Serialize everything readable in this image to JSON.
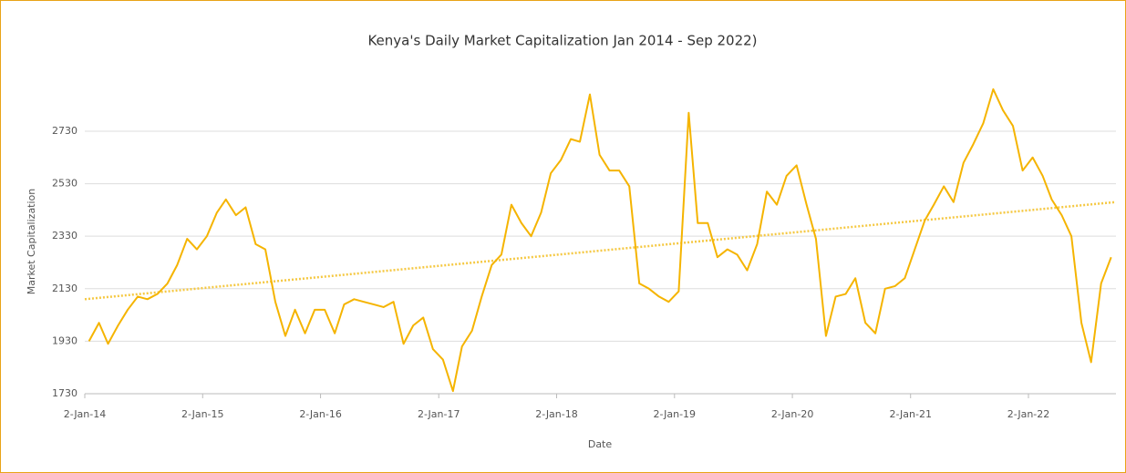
{
  "chart_data": {
    "type": "line",
    "title": "Kenya's Daily Market Capitalization Jan 2014  - Sep 2022)",
    "xlabel": "Date",
    "ylabel": "Market Capitalization",
    "x": [
      "2014-01-15",
      "2014-02-15",
      "2014-03-15",
      "2014-04-15",
      "2014-05-15",
      "2014-06-15",
      "2014-07-15",
      "2014-08-15",
      "2014-09-15",
      "2014-10-15",
      "2014-11-15",
      "2014-12-15",
      "2015-01-15",
      "2015-02-15",
      "2015-03-15",
      "2015-04-15",
      "2015-05-15",
      "2015-06-15",
      "2015-07-15",
      "2015-08-15",
      "2015-09-15",
      "2015-10-15",
      "2015-11-15",
      "2015-12-15",
      "2016-01-15",
      "2016-02-15",
      "2016-03-15",
      "2016-04-15",
      "2016-05-15",
      "2016-06-15",
      "2016-07-15",
      "2016-08-15",
      "2016-09-15",
      "2016-10-15",
      "2016-11-15",
      "2016-12-15",
      "2017-01-15",
      "2017-02-15",
      "2017-03-15",
      "2017-04-15",
      "2017-05-15",
      "2017-06-15",
      "2017-07-15",
      "2017-08-15",
      "2017-09-15",
      "2017-10-15",
      "2017-11-15",
      "2017-12-15",
      "2018-01-15",
      "2018-02-15",
      "2018-03-15",
      "2018-04-15",
      "2018-05-15",
      "2018-06-15",
      "2018-07-15",
      "2018-08-15",
      "2018-09-15",
      "2018-10-15",
      "2018-11-15",
      "2018-12-15",
      "2019-01-15",
      "2019-02-15",
      "2019-03-15",
      "2019-04-15",
      "2019-05-15",
      "2019-06-15",
      "2019-07-15",
      "2019-08-15",
      "2019-09-15",
      "2019-10-15",
      "2019-11-15",
      "2019-12-15",
      "2020-01-15",
      "2020-02-15",
      "2020-03-15",
      "2020-04-15",
      "2020-05-15",
      "2020-06-15",
      "2020-07-15",
      "2020-08-15",
      "2020-09-15",
      "2020-10-15",
      "2020-11-15",
      "2020-12-15",
      "2021-01-15",
      "2021-02-15",
      "2021-03-15",
      "2021-04-15",
      "2021-05-15",
      "2021-06-15",
      "2021-07-15",
      "2021-08-15",
      "2021-09-15",
      "2021-10-15",
      "2021-11-15",
      "2021-12-15",
      "2022-01-15",
      "2022-02-15",
      "2022-03-15",
      "2022-04-15",
      "2022-05-15",
      "2022-06-15",
      "2022-07-15",
      "2022-08-15",
      "2022-09-15"
    ],
    "values": [
      1930,
      2000,
      1920,
      1990,
      2050,
      2100,
      2090,
      2110,
      2150,
      2220,
      2320,
      2280,
      2330,
      2420,
      2470,
      2410,
      2440,
      2300,
      2280,
      2080,
      1950,
      2050,
      1960,
      2050,
      2050,
      1960,
      2070,
      2090,
      2080,
      2070,
      2060,
      2080,
      1920,
      1990,
      2020,
      1900,
      1860,
      1740,
      1910,
      1970,
      2100,
      2220,
      2260,
      2450,
      2380,
      2330,
      2420,
      2570,
      2620,
      2700,
      2690,
      2870,
      2640,
      2580,
      2580,
      2520,
      2150,
      2130,
      2100,
      2080,
      2120,
      2800,
      2380,
      2380,
      2250,
      2280,
      2260,
      2200,
      2300,
      2500,
      2450,
      2560,
      2600,
      2450,
      2320,
      1950,
      2100,
      2110,
      2170,
      2000,
      1960,
      2130,
      2140,
      2170,
      2280,
      2390,
      2450,
      2520,
      2460,
      2610,
      2680,
      2760,
      2890,
      2810,
      2750,
      2580,
      2630,
      2560,
      2470,
      2410,
      2330,
      2000,
      1850,
      2150,
      2250
    ],
    "color": "#f5b400",
    "trend": {
      "x": [
        "2014-01-02",
        "2022-09-30"
      ],
      "values": [
        2090,
        2460
      ],
      "color": "#f5c842"
    },
    "xlim": [
      "2014-01-02",
      "2022-09-30"
    ],
    "xticks": [
      {
        "value": "2014-01-02",
        "label": "2-Jan-14"
      },
      {
        "value": "2015-01-02",
        "label": "2-Jan-15"
      },
      {
        "value": "2016-01-02",
        "label": "2-Jan-16"
      },
      {
        "value": "2017-01-02",
        "label": "2-Jan-17"
      },
      {
        "value": "2018-01-02",
        "label": "2-Jan-18"
      },
      {
        "value": "2019-01-02",
        "label": "2-Jan-19"
      },
      {
        "value": "2020-01-02",
        "label": "2-Jan-20"
      },
      {
        "value": "2021-01-02",
        "label": "2-Jan-21"
      },
      {
        "value": "2022-01-02",
        "label": "2-Jan-22"
      }
    ],
    "ylim": [
      1730,
      2900
    ],
    "yticks": [
      1730,
      1930,
      2130,
      2330,
      2530,
      2730
    ],
    "grid": true
  }
}
